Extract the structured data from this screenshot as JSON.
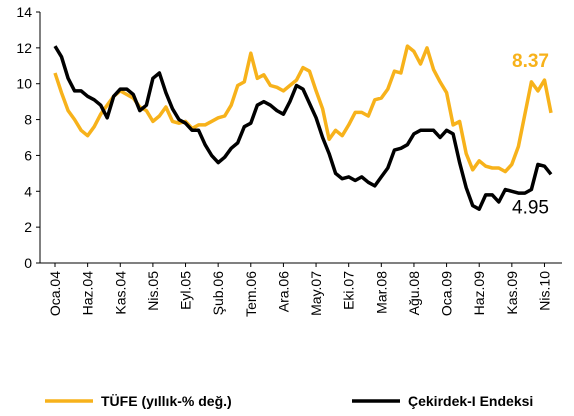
{
  "chart_data": {
    "type": "line",
    "categories": [
      "Oca.04",
      null,
      null,
      null,
      null,
      "Haz.04",
      null,
      null,
      null,
      null,
      "Kas.04",
      null,
      null,
      null,
      null,
      "Nis.05",
      null,
      null,
      null,
      null,
      "Eyl.05",
      null,
      null,
      null,
      null,
      "Şub.06",
      null,
      null,
      null,
      null,
      "Tem.06",
      null,
      null,
      null,
      null,
      "Ara.06",
      null,
      null,
      null,
      null,
      "May.07",
      null,
      null,
      null,
      null,
      "Eki.07",
      null,
      null,
      null,
      null,
      "Mar.08",
      null,
      null,
      null,
      null,
      "Ağu.08",
      null,
      null,
      null,
      null,
      "Oca.09",
      null,
      null,
      null,
      null,
      "Haz.09",
      null,
      null,
      null,
      null,
      "Kas.09",
      null,
      null,
      null,
      null,
      "Nis.10",
      null
    ],
    "series": [
      {
        "name": "TÜFE (yıllık-% değ.)",
        "color": "#f7b21b",
        "values": [
          10.6,
          9.5,
          8.5,
          8.0,
          7.4,
          7.1,
          7.6,
          8.3,
          8.8,
          9.3,
          9.6,
          9.4,
          9.2,
          8.7,
          8.5,
          7.9,
          8.2,
          8.7,
          7.9,
          7.8,
          7.9,
          7.5,
          7.7,
          7.7,
          7.9,
          8.1,
          8.2,
          8.8,
          9.9,
          10.1,
          11.7,
          10.3,
          10.5,
          9.9,
          9.8,
          9.6,
          9.9,
          10.2,
          10.9,
          10.7,
          9.6,
          8.6,
          6.9,
          7.4,
          7.1,
          7.7,
          8.4,
          8.4,
          8.2,
          9.1,
          9.2,
          9.7,
          10.7,
          10.6,
          12.1,
          11.8,
          11.1,
          12.0,
          10.8,
          10.1,
          9.5,
          7.7,
          7.9,
          6.1,
          5.2,
          5.7,
          5.4,
          5.3,
          5.3,
          5.1,
          5.5,
          6.5,
          8.3,
          10.1,
          9.6,
          10.2,
          8.37
        ]
      },
      {
        "name": "Çekirdek-I Endeksi",
        "color": "#000000",
        "values": [
          12.1,
          11.5,
          10.3,
          9.6,
          9.6,
          9.3,
          9.1,
          8.8,
          8.1,
          9.3,
          9.7,
          9.7,
          9.4,
          8.5,
          8.8,
          10.3,
          10.6,
          9.5,
          8.6,
          8.0,
          7.8,
          7.4,
          7.4,
          6.6,
          6.0,
          5.6,
          5.9,
          6.4,
          6.7,
          7.6,
          7.8,
          8.8,
          9.0,
          8.8,
          8.5,
          8.3,
          9.0,
          9.9,
          9.7,
          8.9,
          8.1,
          7.0,
          6.1,
          5.0,
          4.7,
          4.8,
          4.6,
          4.8,
          4.5,
          4.3,
          4.8,
          5.3,
          6.3,
          6.4,
          6.6,
          7.2,
          7.4,
          7.4,
          7.4,
          7.0,
          7.4,
          7.2,
          5.6,
          4.2,
          3.2,
          3.0,
          3.8,
          3.8,
          3.4,
          4.1,
          4.0,
          3.9,
          3.9,
          4.1,
          5.5,
          5.4,
          4.95
        ]
      }
    ],
    "ylim": [
      0,
      14
    ],
    "yticks": [
      0,
      2,
      4,
      6,
      8,
      10,
      12,
      14
    ],
    "grid": false,
    "legend": "bottom"
  }
}
